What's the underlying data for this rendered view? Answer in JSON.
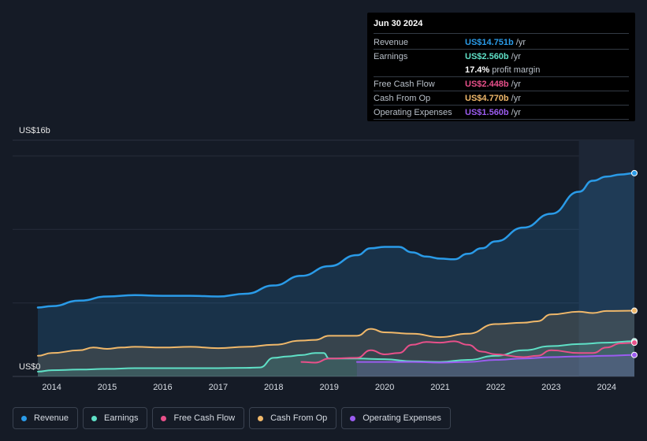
{
  "tooltip": {
    "date": "Jun 30 2024",
    "rows": [
      {
        "label": "Revenue",
        "value": "US$14.751b",
        "unit": "/yr",
        "color": "#2a9be8"
      },
      {
        "label": "Earnings",
        "value": "US$2.560b",
        "unit": "/yr",
        "color": "#5fe0c6"
      },
      {
        "label": "",
        "value": "17.4%",
        "unit": "profit margin",
        "color": "#ffffff"
      },
      {
        "label": "Free Cash Flow",
        "value": "US$2.448b",
        "unit": "/yr",
        "color": "#e8508a"
      },
      {
        "label": "Cash From Op",
        "value": "US$4.770b",
        "unit": "/yr",
        "color": "#f0b86a"
      },
      {
        "label": "Operating Expenses",
        "value": "US$1.560b",
        "unit": "/yr",
        "color": "#9b5cf0"
      }
    ]
  },
  "legend": [
    {
      "label": "Revenue",
      "color": "#2a9be8"
    },
    {
      "label": "Earnings",
      "color": "#5fe0c6"
    },
    {
      "label": "Free Cash Flow",
      "color": "#e8508a"
    },
    {
      "label": "Cash From Op",
      "color": "#f0b86a"
    },
    {
      "label": "Operating Expenses",
      "color": "#9b5cf0"
    }
  ],
  "chart_data": {
    "type": "line",
    "title": "",
    "xlabel": "",
    "ylabel": "",
    "y_top_label": "US$16b",
    "y_bottom_label": "US$0",
    "ylim": [
      0,
      16
    ],
    "xlim": [
      2013.7,
      2024.5
    ],
    "x_ticks": [
      "2014",
      "2015",
      "2016",
      "2017",
      "2018",
      "2019",
      "2020",
      "2021",
      "2022",
      "2023",
      "2024"
    ],
    "highlight_from": 2023.5,
    "series": [
      {
        "name": "Revenue",
        "color": "#2a9be8",
        "area": true,
        "points": [
          [
            2013.75,
            5.0
          ],
          [
            2014.0,
            5.1
          ],
          [
            2014.5,
            5.5
          ],
          [
            2015.0,
            5.8
          ],
          [
            2015.5,
            5.9
          ],
          [
            2016.0,
            5.85
          ],
          [
            2016.5,
            5.85
          ],
          [
            2017.0,
            5.8
          ],
          [
            2017.5,
            6.0
          ],
          [
            2018.0,
            6.6
          ],
          [
            2018.5,
            7.3
          ],
          [
            2019.0,
            8.0
          ],
          [
            2019.5,
            8.8
          ],
          [
            2019.75,
            9.3
          ],
          [
            2020.0,
            9.4
          ],
          [
            2020.25,
            9.4
          ],
          [
            2020.5,
            9.0
          ],
          [
            2020.75,
            8.7
          ],
          [
            2021.0,
            8.55
          ],
          [
            2021.25,
            8.5
          ],
          [
            2021.5,
            8.9
          ],
          [
            2021.75,
            9.3
          ],
          [
            2022.0,
            9.8
          ],
          [
            2022.5,
            10.8
          ],
          [
            2023.0,
            11.8
          ],
          [
            2023.5,
            13.4
          ],
          [
            2023.75,
            14.2
          ],
          [
            2024.0,
            14.5
          ],
          [
            2024.25,
            14.65
          ],
          [
            2024.5,
            14.751
          ]
        ]
      },
      {
        "name": "Earnings",
        "color": "#5fe0c6",
        "area": true,
        "points": [
          [
            2013.75,
            0.35
          ],
          [
            2014.0,
            0.45
          ],
          [
            2014.5,
            0.5
          ],
          [
            2015.0,
            0.55
          ],
          [
            2015.5,
            0.6
          ],
          [
            2016.0,
            0.6
          ],
          [
            2016.5,
            0.6
          ],
          [
            2017.0,
            0.6
          ],
          [
            2017.5,
            0.62
          ],
          [
            2017.75,
            0.65
          ],
          [
            2018.0,
            1.35
          ],
          [
            2018.25,
            1.45
          ],
          [
            2018.5,
            1.55
          ],
          [
            2018.75,
            1.7
          ],
          [
            2018.9,
            1.7
          ],
          [
            2019.0,
            1.3
          ],
          [
            2019.5,
            1.3
          ],
          [
            2020.0,
            1.25
          ],
          [
            2020.5,
            1.1
          ],
          [
            2021.0,
            1.05
          ],
          [
            2021.5,
            1.2
          ],
          [
            2022.0,
            1.5
          ],
          [
            2022.5,
            1.9
          ],
          [
            2023.0,
            2.2
          ],
          [
            2023.5,
            2.35
          ],
          [
            2024.0,
            2.45
          ],
          [
            2024.5,
            2.56
          ]
        ]
      },
      {
        "name": "Free Cash Flow",
        "color": "#e8508a",
        "area": false,
        "points": [
          [
            2018.5,
            1.05
          ],
          [
            2018.75,
            1.0
          ],
          [
            2019.0,
            1.3
          ],
          [
            2019.5,
            1.35
          ],
          [
            2019.75,
            1.9
          ],
          [
            2020.0,
            1.6
          ],
          [
            2020.25,
            1.7
          ],
          [
            2020.5,
            2.3
          ],
          [
            2020.75,
            2.5
          ],
          [
            2021.0,
            2.45
          ],
          [
            2021.25,
            2.55
          ],
          [
            2021.5,
            2.3
          ],
          [
            2021.75,
            1.8
          ],
          [
            2022.0,
            1.6
          ],
          [
            2022.5,
            1.4
          ],
          [
            2022.75,
            1.5
          ],
          [
            2023.0,
            1.9
          ],
          [
            2023.5,
            1.7
          ],
          [
            2023.75,
            1.7
          ],
          [
            2024.0,
            2.1
          ],
          [
            2024.25,
            2.4
          ],
          [
            2024.5,
            2.448
          ]
        ]
      },
      {
        "name": "Cash From Op",
        "color": "#f0b86a",
        "area": true,
        "points": [
          [
            2013.75,
            1.5
          ],
          [
            2014.0,
            1.7
          ],
          [
            2014.5,
            1.9
          ],
          [
            2014.75,
            2.1
          ],
          [
            2015.0,
            2.0
          ],
          [
            2015.25,
            2.1
          ],
          [
            2015.5,
            2.15
          ],
          [
            2016.0,
            2.1
          ],
          [
            2016.5,
            2.15
          ],
          [
            2017.0,
            2.05
          ],
          [
            2017.5,
            2.15
          ],
          [
            2018.0,
            2.3
          ],
          [
            2018.5,
            2.6
          ],
          [
            2018.75,
            2.65
          ],
          [
            2019.0,
            2.95
          ],
          [
            2019.5,
            2.95
          ],
          [
            2019.75,
            3.45
          ],
          [
            2020.0,
            3.2
          ],
          [
            2020.5,
            3.1
          ],
          [
            2021.0,
            2.85
          ],
          [
            2021.5,
            3.1
          ],
          [
            2022.0,
            3.8
          ],
          [
            2022.5,
            3.9
          ],
          [
            2022.75,
            4.0
          ],
          [
            2023.0,
            4.5
          ],
          [
            2023.5,
            4.7
          ],
          [
            2023.75,
            4.6
          ],
          [
            2024.0,
            4.75
          ],
          [
            2024.5,
            4.77
          ]
        ]
      },
      {
        "name": "Operating Expenses",
        "color": "#9b5cf0",
        "area": true,
        "points": [
          [
            2019.5,
            1.05
          ],
          [
            2020.0,
            1.05
          ],
          [
            2020.5,
            1.05
          ],
          [
            2021.0,
            1.0
          ],
          [
            2021.5,
            1.05
          ],
          [
            2022.0,
            1.2
          ],
          [
            2022.5,
            1.3
          ],
          [
            2023.0,
            1.4
          ],
          [
            2023.5,
            1.45
          ],
          [
            2024.0,
            1.5
          ],
          [
            2024.5,
            1.56
          ]
        ]
      }
    ]
  }
}
